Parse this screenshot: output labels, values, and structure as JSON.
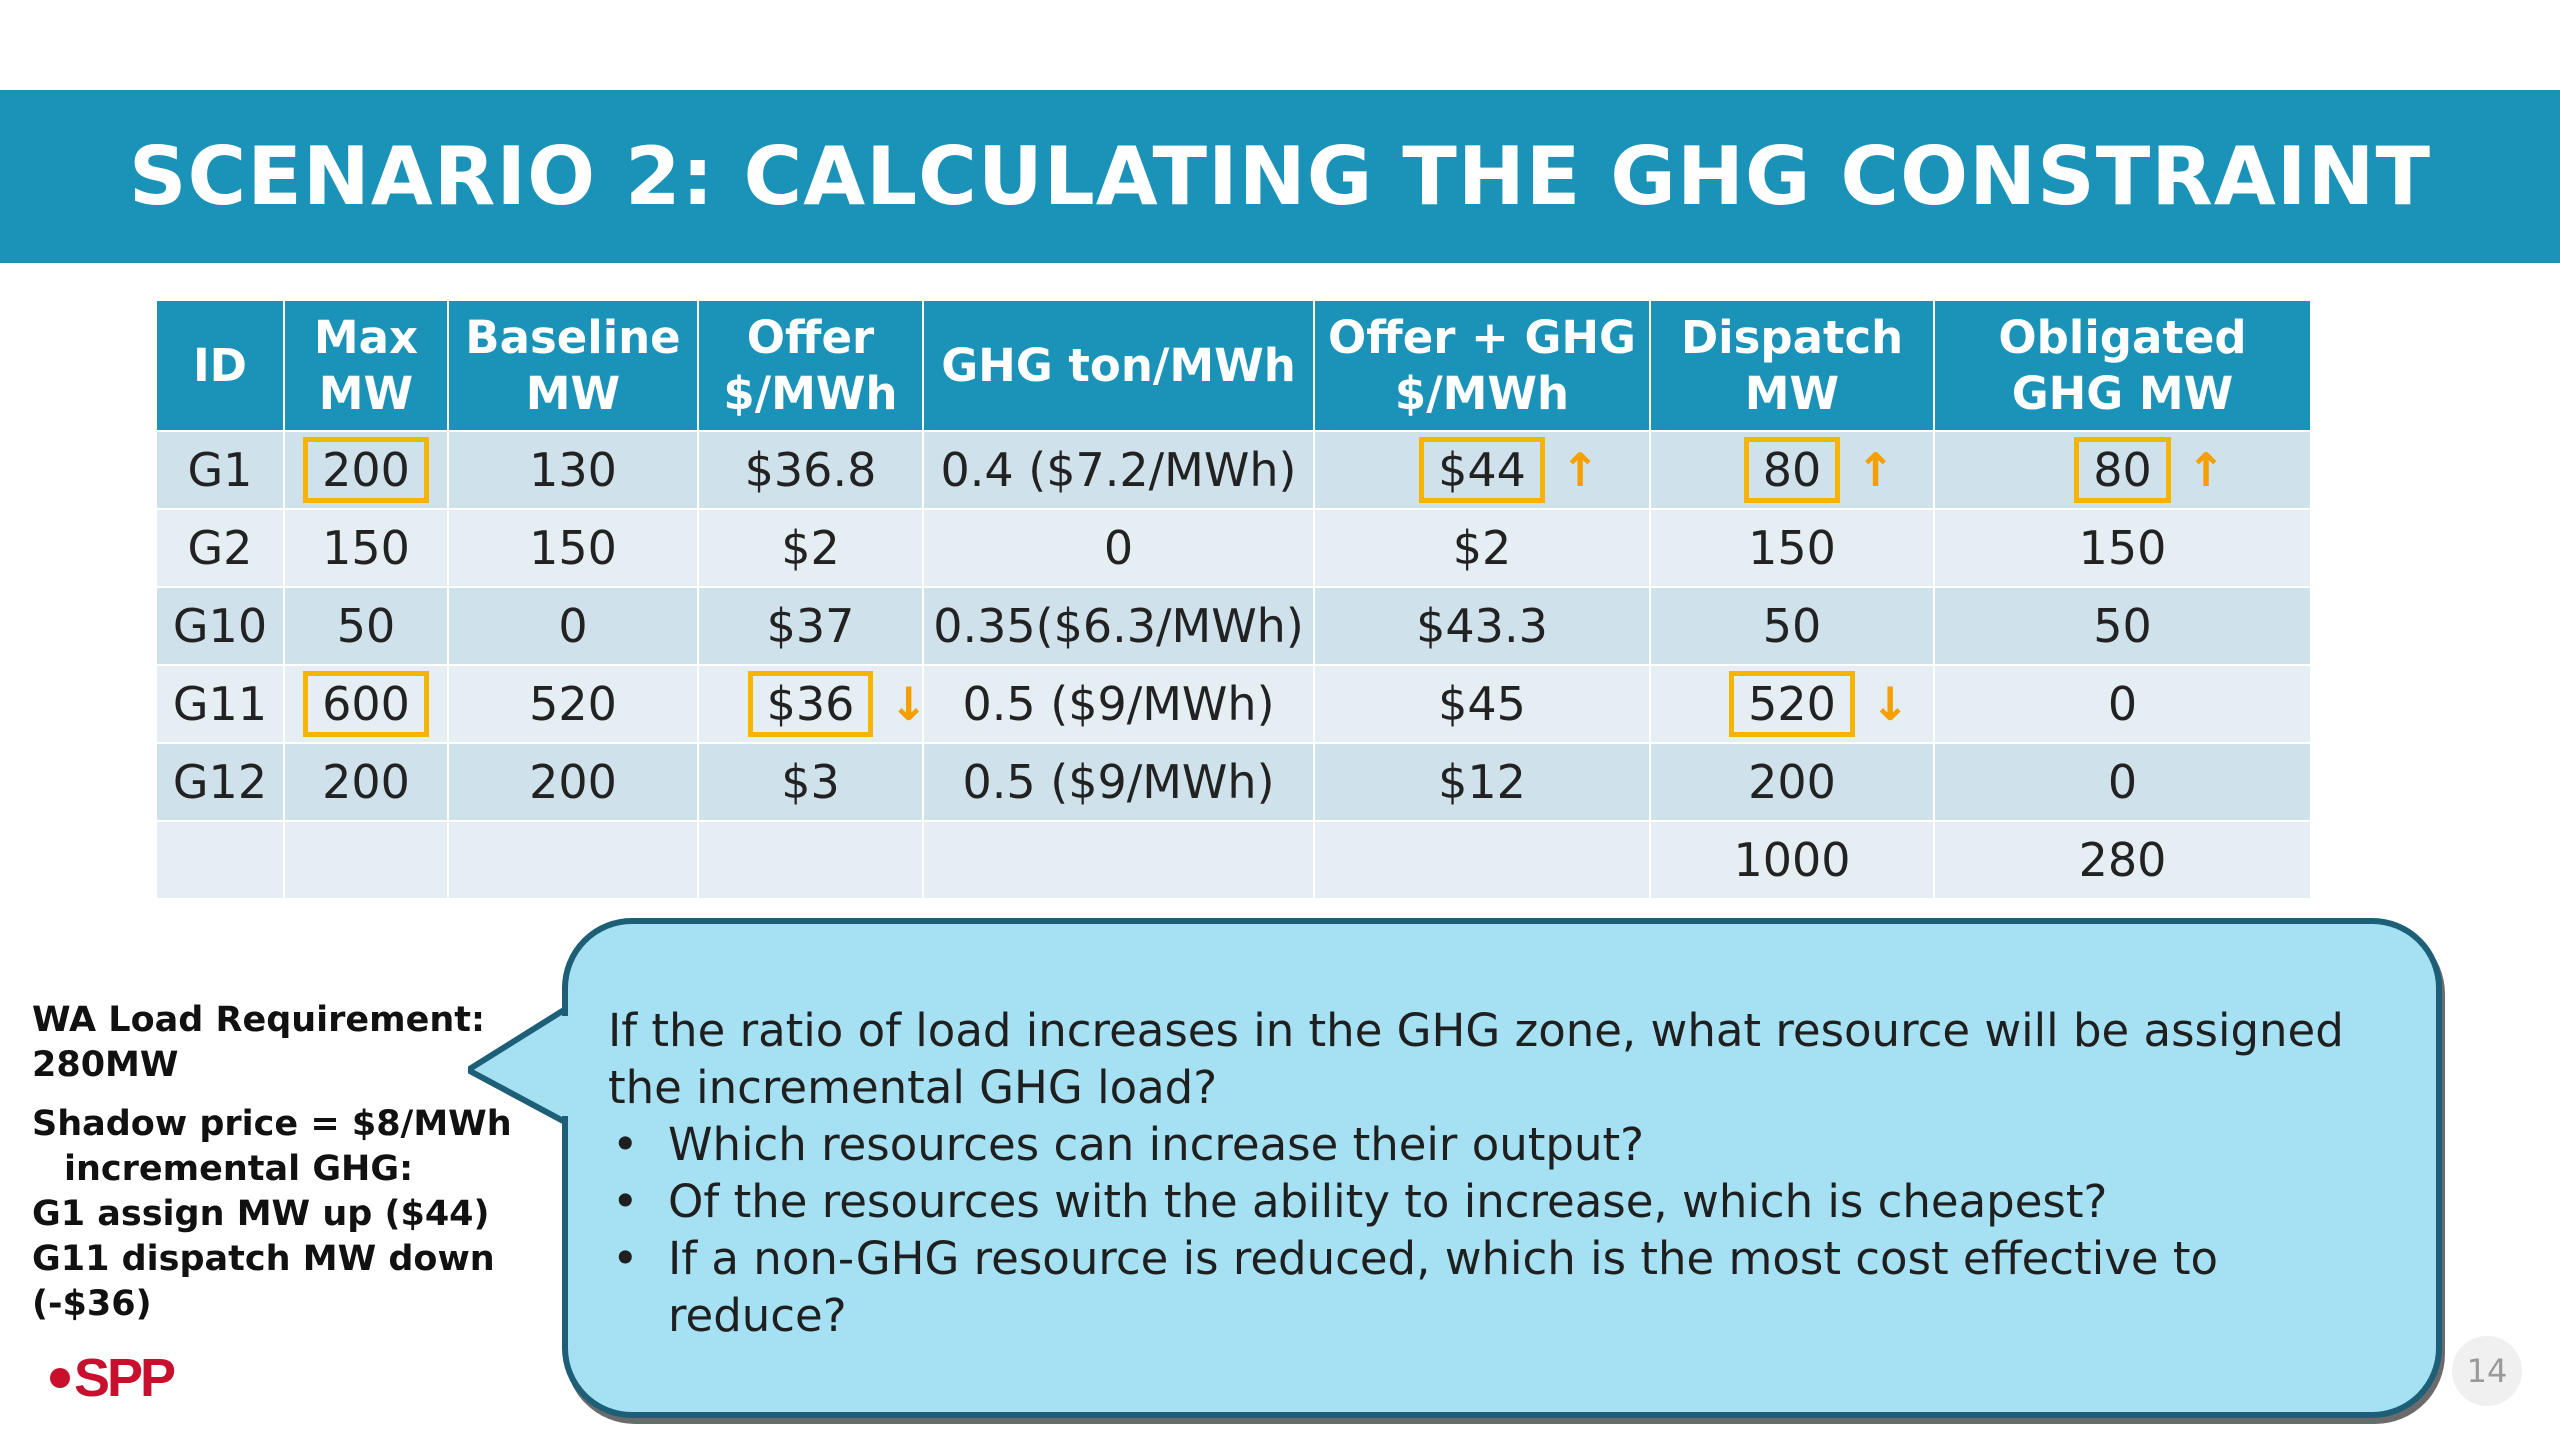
{
  "title": "SCENARIO 2:  CALCULATING THE GHG CONSTRAINT",
  "table": {
    "headers": [
      {
        "line1": "ID",
        "line2": ""
      },
      {
        "line1": "Max",
        "line2": "MW"
      },
      {
        "line1": "Baseline",
        "line2": "MW"
      },
      {
        "line1": "Offer",
        "line2": "$/MWh"
      },
      {
        "line1": "GHG ton/MWh",
        "line2": ""
      },
      {
        "line1": "Offer + GHG",
        "line2": "$/MWh"
      },
      {
        "line1": "Dispatch",
        "line2": "MW"
      },
      {
        "line1": "Obligated",
        "line2": "GHG MW"
      }
    ],
    "rows": [
      [
        "G1",
        "200",
        "130",
        "$36.8",
        "0.4 ($7.2/MWh)",
        "$44",
        "80",
        "80"
      ],
      [
        "G2",
        "150",
        "150",
        "$2",
        "0",
        "$2",
        "150",
        "150"
      ],
      [
        "G10",
        "50",
        "0",
        "$37",
        "0.35($6.3/MWh)",
        "$43.3",
        "50",
        "50"
      ],
      [
        "G11",
        "600",
        "520",
        "$36",
        "0.5 ($9/MWh)",
        "$45",
        "520",
        "0"
      ],
      [
        "G12",
        "200",
        "200",
        "$3",
        "0.5 ($9/MWh)",
        "$12",
        "200",
        "0"
      ],
      [
        "",
        "",
        "",
        "",
        "",
        "",
        "1000",
        "280"
      ]
    ],
    "arrow_up": "↑",
    "arrow_down": "↓",
    "highlight_color": "#f5b400",
    "header_color": "#1b93b8"
  },
  "notes": {
    "line1": "WA Load Requirement:",
    "line2": "280MW",
    "line3": "Shadow price = $8/MWh",
    "line4": "incremental GHG:",
    "line5": "G1 assign MW up ($44)",
    "line6": "G11 dispatch MW down (-$36)"
  },
  "callout": {
    "question": "If the ratio of load increases in the GHG zone, what resource will be assigned the incremental GHG load?",
    "bullets": [
      "Which resources can increase their output?",
      "Of the resources with the ability to increase, which is cheapest?",
      "If a non-GHG resource is reduced, which is the most cost effective to reduce?"
    ]
  },
  "logo": "SPP",
  "page_number": "14"
}
